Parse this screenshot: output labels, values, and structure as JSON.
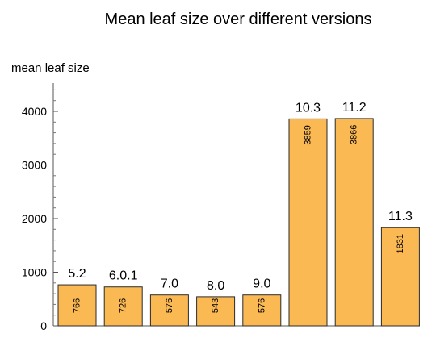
{
  "chart_data": {
    "type": "bar",
    "title": "Mean leaf size over different versions",
    "xlabel": "",
    "ylabel": "mean leaf size",
    "categories": [
      "5.2",
      "6.0.1",
      "7.0",
      "8.0",
      "9.0",
      "10.3",
      "11.2",
      "11.3"
    ],
    "values": [
      766,
      726,
      576,
      543,
      576,
      3859,
      3866,
      1831
    ],
    "ylim": [
      0,
      4500
    ],
    "yticks": [
      0,
      1000,
      2000,
      3000,
      4000
    ],
    "grid": false,
    "legend": "none",
    "bar_color": "#fbb954",
    "bar_edge_color": "#2b2b2b"
  }
}
